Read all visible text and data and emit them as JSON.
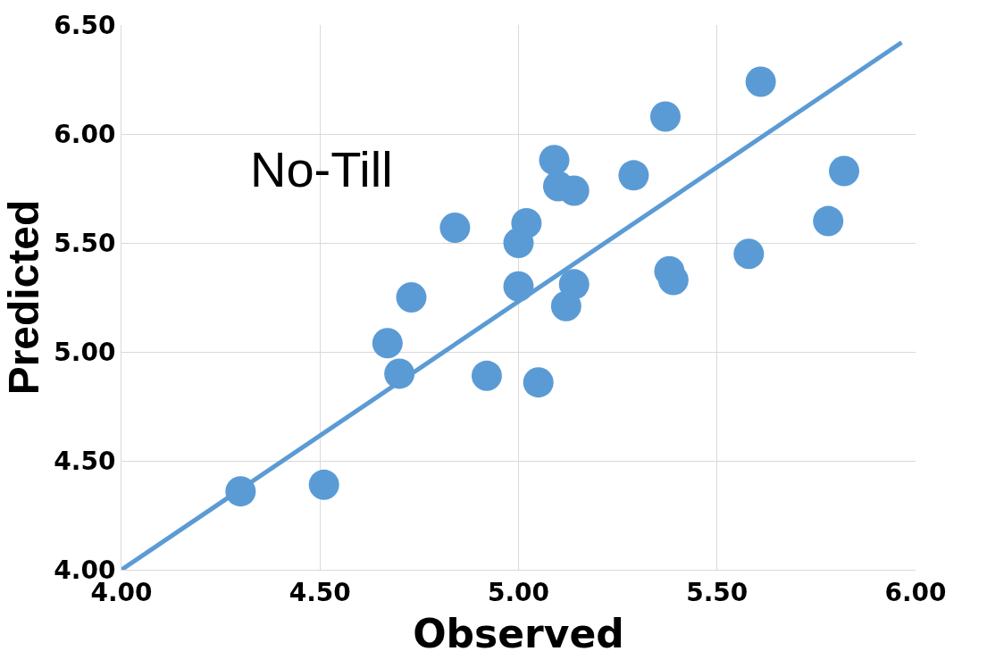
{
  "chart_data": {
    "type": "scatter",
    "xlabel": "Observed",
    "ylabel": "Predicted",
    "annotations": [
      "No-Till"
    ],
    "xlim": [
      4.0,
      6.0
    ],
    "ylim": [
      4.0,
      6.5
    ],
    "xticks": [
      {
        "value": 4.0,
        "label": "4.00"
      },
      {
        "value": 4.5,
        "label": "4.50"
      },
      {
        "value": 5.0,
        "label": "5.00"
      },
      {
        "value": 5.5,
        "label": "5.50"
      },
      {
        "value": 6.0,
        "label": "6.00"
      }
    ],
    "yticks": [
      {
        "value": 4.0,
        "label": "4.00"
      },
      {
        "value": 4.5,
        "label": "4.50"
      },
      {
        "value": 5.0,
        "label": "5.00"
      },
      {
        "value": 5.5,
        "label": "5.50"
      },
      {
        "value": 6.0,
        "label": "6.00"
      },
      {
        "value": 6.5,
        "label": "6.50"
      }
    ],
    "grid": true,
    "series": [
      {
        "color": "#5b9bd5",
        "marker": "circle",
        "x": [
          4.3,
          4.51,
          4.67,
          4.7,
          4.73,
          4.84,
          4.92,
          5.05,
          5.0,
          5.02,
          5.0,
          5.09,
          5.1,
          5.14,
          5.14,
          5.12,
          5.29,
          5.37,
          5.38,
          5.39,
          5.58,
          5.61,
          5.78,
          5.82
        ],
        "values": [
          4.36,
          4.39,
          5.04,
          4.9,
          5.25,
          5.57,
          4.89,
          4.86,
          5.5,
          5.59,
          5.3,
          5.88,
          5.76,
          5.74,
          5.31,
          5.21,
          5.81,
          6.08,
          5.37,
          5.33,
          5.45,
          6.24,
          5.6,
          5.83
        ]
      },
      {
        "type": "line",
        "color": "#5b9bd5",
        "marker": "none",
        "line_style": "solid",
        "x": [
          4.0,
          5.965
        ],
        "values": [
          4.0,
          6.42
        ]
      }
    ]
  }
}
